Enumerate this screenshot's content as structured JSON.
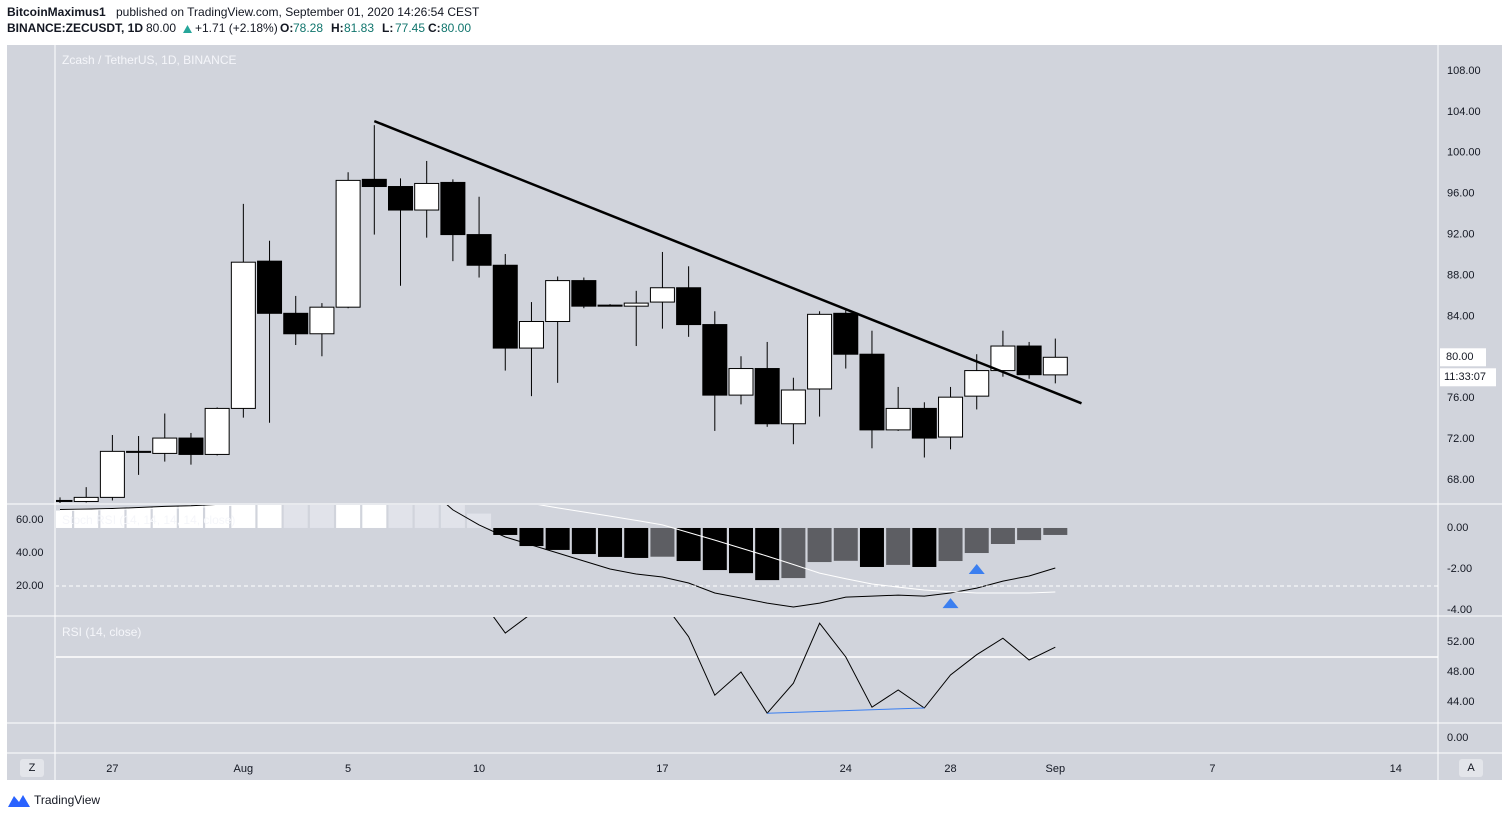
{
  "header": {
    "author": "BitcoinMaximus1",
    "published": "published on TradingView.com, September 01, 2020 14:26:54 CEST",
    "symbol": "BINANCE:ZECUSDT, 1D",
    "price": "80.00",
    "change": "+1.71 (+2.18%)",
    "ohlc": [
      {
        "label": "O:",
        "value": "78.28"
      },
      {
        "label": "H:",
        "value": "81.83"
      },
      {
        "label": "L:",
        "value": "77.45"
      },
      {
        "label": "C:",
        "value": "80.00"
      }
    ]
  },
  "chart_data": [
    {
      "type": "candlestick",
      "title": "Zcash / TetherUS, 1D, BINANCE",
      "x": [
        "2020-07-25",
        "2020-07-26",
        "2020-07-27",
        "2020-07-28",
        "2020-07-29",
        "2020-07-30",
        "2020-07-31",
        "2020-08-01",
        "2020-08-02",
        "2020-08-03",
        "2020-08-04",
        "2020-08-05",
        "2020-08-06",
        "2020-08-07",
        "2020-08-08",
        "2020-08-09",
        "2020-08-10",
        "2020-08-11",
        "2020-08-12",
        "2020-08-13",
        "2020-08-14",
        "2020-08-15",
        "2020-08-16",
        "2020-08-17",
        "2020-08-18",
        "2020-08-19",
        "2020-08-20",
        "2020-08-21",
        "2020-08-22",
        "2020-08-23",
        "2020-08-24",
        "2020-08-25",
        "2020-08-26",
        "2020-08-27",
        "2020-08-28",
        "2020-08-29",
        "2020-08-30",
        "2020-08-31",
        "2020-09-01"
      ],
      "open": [
        66.0,
        65.9,
        66.3,
        70.7,
        70.6,
        72.1,
        70.5,
        75.0,
        89.4,
        84.3,
        82.3,
        84.9,
        97.4,
        96.7,
        94.4,
        97.1,
        92.0,
        89.0,
        80.9,
        83.5,
        87.5,
        85.1,
        85.0,
        85.4,
        86.8,
        83.2,
        76.3,
        78.9,
        73.5,
        76.9,
        84.3,
        80.3,
        72.9,
        75.0,
        72.2,
        76.2,
        78.7,
        81.1,
        78.28
      ],
      "high": [
        66.3,
        67.3,
        72.4,
        72.3,
        74.5,
        72.6,
        75.1,
        95.0,
        91.4,
        86.0,
        85.3,
        98.1,
        102.7,
        97.5,
        99.2,
        97.4,
        95.7,
        90.1,
        85.4,
        87.9,
        87.8,
        85.2,
        86.5,
        90.3,
        88.9,
        84.5,
        80.1,
        81.5,
        78.0,
        84.5,
        84.6,
        82.6,
        77.1,
        75.6,
        77.1,
        80.3,
        82.6,
        81.5,
        81.83
      ],
      "low": [
        65.7,
        65.8,
        66.0,
        68.5,
        69.8,
        69.5,
        70.4,
        74.1,
        73.6,
        81.2,
        80.1,
        84.8,
        92.0,
        87.0,
        91.7,
        89.4,
        87.8,
        78.7,
        76.2,
        77.5,
        84.8,
        85.0,
        81.1,
        82.8,
        82.0,
        72.8,
        75.4,
        73.2,
        71.5,
        74.2,
        78.9,
        71.1,
        72.8,
        70.2,
        71.0,
        74.9,
        78.1,
        77.9,
        77.45
      ],
      "close": [
        65.9,
        66.3,
        70.8,
        70.8,
        72.1,
        70.5,
        75.0,
        89.3,
        84.3,
        82.3,
        84.9,
        97.3,
        96.7,
        94.4,
        97.0,
        92.0,
        89.0,
        80.9,
        83.5,
        87.5,
        85.0,
        85.0,
        85.3,
        86.8,
        83.2,
        76.3,
        78.9,
        73.5,
        76.8,
        84.2,
        80.3,
        72.9,
        75.0,
        72.1,
        76.1,
        78.7,
        81.1,
        78.3,
        80.0
      ],
      "up_color": "#ffffff",
      "down_color": "#000000",
      "wick_color": "#000000",
      "xlim": [
        "2020-07-25",
        "2020-09-15"
      ],
      "xticks": [
        {
          "value": "2020-07-27",
          "label": "27"
        },
        {
          "value": "2020-08-01",
          "label": "Aug"
        },
        {
          "value": "2020-08-05",
          "label": "5"
        },
        {
          "value": "2020-08-10",
          "label": "10"
        },
        {
          "value": "2020-08-17",
          "label": "17"
        },
        {
          "value": "2020-08-24",
          "label": "24"
        },
        {
          "value": "2020-08-28",
          "label": "28"
        },
        {
          "value": "2020-09-01",
          "label": "Sep"
        },
        {
          "value": "2020-09-07",
          "label": "7"
        },
        {
          "value": "2020-09-14",
          "label": "14"
        }
      ],
      "ylim": [
        65.75,
        110.54
      ],
      "yticks": [
        {
          "value": 68,
          "label": "68.00"
        },
        {
          "value": 72,
          "label": "72.00"
        },
        {
          "value": 76,
          "label": "76.00"
        },
        {
          "value": 80,
          "label": "80.00"
        },
        {
          "value": 84,
          "label": "84.00"
        },
        {
          "value": 88,
          "label": "88.00"
        },
        {
          "value": 92,
          "label": "92.00"
        },
        {
          "value": 96,
          "label": "96.00"
        },
        {
          "value": 100,
          "label": "100.00"
        },
        {
          "value": 104,
          "label": "104.00"
        },
        {
          "value": 108,
          "label": "108.00"
        }
      ],
      "trendline": {
        "x": [
          "2020-08-06",
          "2020-09-02"
        ],
        "values": [
          103.1,
          75.5
        ],
        "color": "#000000"
      },
      "price_label": {
        "value": 80,
        "label": "80.00"
      },
      "countdown": "11:33:07"
    },
    {
      "type": "bar",
      "title": "Stoch RSI (14, 14, 14, 14, close)",
      "x": [
        "2020-07-25",
        "2020-07-26",
        "2020-07-27",
        "2020-07-28",
        "2020-07-29",
        "2020-07-30",
        "2020-07-31",
        "2020-08-01",
        "2020-08-02",
        "2020-08-03",
        "2020-08-04",
        "2020-08-05",
        "2020-08-06",
        "2020-08-07",
        "2020-08-08",
        "2020-08-09",
        "2020-08-10",
        "2020-08-11",
        "2020-08-12",
        "2020-08-13",
        "2020-08-14",
        "2020-08-15",
        "2020-08-16",
        "2020-08-17",
        "2020-08-18",
        "2020-08-19",
        "2020-08-20",
        "2020-08-21",
        "2020-08-22",
        "2020-08-23",
        "2020-08-24",
        "2020-08-25",
        "2020-08-26",
        "2020-08-27",
        "2020-08-28",
        "2020-08-29",
        "2020-08-30",
        "2020-08-31",
        "2020-09-01"
      ],
      "values": [
        0.85,
        0.9,
        0.95,
        1.0,
        1.05,
        1.1,
        1.3,
        1.6,
        1.8,
        1.6,
        1.5,
        1.9,
        2.2,
        2.0,
        1.9,
        1.6,
        0.7,
        -0.34,
        -0.88,
        -1.07,
        -1.27,
        -1.41,
        -1.46,
        -1.4,
        -1.61,
        -2.05,
        -2.2,
        -2.54,
        -2.44,
        -1.66,
        -1.6,
        -1.9,
        -1.8,
        -1.9,
        -1.61,
        -1.22,
        -0.78,
        -0.59,
        -0.34
      ],
      "colors": [
        "#ffffff",
        "#ffffff",
        "#ffffff",
        "#ffffff",
        "#ffffff",
        "#ffffff",
        "#ffffff",
        "#ffffff",
        "#ffffff",
        "#e1e3ea",
        "#e1e3ea",
        "#ffffff",
        "#ffffff",
        "#e1e3ea",
        "#e1e3ea",
        "#e1e3ea",
        "#e1e3ea",
        "#000000",
        "#000000",
        "#000000",
        "#000000",
        "#000000",
        "#000000",
        "#5d5e63",
        "#000000",
        "#000000",
        "#000000",
        "#000000",
        "#5d5e63",
        "#5d5e63",
        "#5d5e63",
        "#000000",
        "#5d5e63",
        "#000000",
        "#5d5e63",
        "#5d5e63",
        "#5d5e63",
        "#5d5e63",
        "#5d5e63"
      ],
      "series": [
        {
          "color": "#000000",
          "values": [
            0.9,
            0.92,
            0.95,
            1.0,
            1.05,
            1.08,
            1.15,
            1.6,
            2.0,
            2.1,
            2.2,
            2.6,
            2.9,
            2.7,
            2.0,
            0.88,
            0.15,
            -0.44,
            -0.83,
            -1.22,
            -1.61,
            -2.0,
            -2.24,
            -2.39,
            -2.68,
            -3.17,
            -3.41,
            -3.66,
            -3.85,
            -3.66,
            -3.37,
            -3.32,
            -3.27,
            -3.32,
            -3.17,
            -2.93,
            -2.59,
            -2.34,
            -1.95
          ]
        },
        {
          "color": "#ffffff",
          "values": [
            0.85,
            0.87,
            0.9,
            0.93,
            0.96,
            1.0,
            1.05,
            1.15,
            1.3,
            1.45,
            1.55,
            1.7,
            1.85,
            1.95,
            1.9,
            1.8,
            1.6,
            1.4,
            1.2,
            0.98,
            0.78,
            0.58,
            0.37,
            0.15,
            -0.22,
            -0.59,
            -0.98,
            -1.37,
            -1.78,
            -2.2,
            -2.47,
            -2.73,
            -2.88,
            -3.02,
            -3.1,
            -3.17,
            -3.17,
            -3.17,
            -3.12
          ]
        }
      ],
      "ylim": [
        -4.24,
        1.12
      ],
      "yticks": [
        {
          "value": 0,
          "label": "0.00"
        },
        {
          "value": -2,
          "label": "-2.00"
        },
        {
          "value": -4,
          "label": "-4.00"
        }
      ],
      "y2lim": [
        2.4,
        69.1
      ],
      "y2ticks": [
        {
          "value": 60,
          "label": "60.00"
        },
        {
          "value": 40,
          "label": "40.00"
        },
        {
          "value": 20,
          "label": "20.00"
        }
      ],
      "hlines": [
        {
          "value": 20,
          "axis": "y2",
          "color": "#ffffff",
          "style": "dashed"
        }
      ],
      "markers": [
        {
          "x": "2020-08-28",
          "value": -3.66,
          "color": "#3b7ff0"
        },
        {
          "x": "2020-08-29",
          "value": -2.0,
          "color": "#3b7ff0"
        }
      ]
    },
    {
      "type": "line",
      "title": "RSI (14, close)",
      "x": [
        "2020-07-25",
        "2020-07-26",
        "2020-07-27",
        "2020-07-28",
        "2020-07-29",
        "2020-07-30",
        "2020-07-31",
        "2020-08-01",
        "2020-08-02",
        "2020-08-03",
        "2020-08-04",
        "2020-08-05",
        "2020-08-06",
        "2020-08-07",
        "2020-08-08",
        "2020-08-09",
        "2020-08-10",
        "2020-08-11",
        "2020-08-12",
        "2020-08-13",
        "2020-08-14",
        "2020-08-15",
        "2020-08-16",
        "2020-08-17",
        "2020-08-18",
        "2020-08-19",
        "2020-08-20",
        "2020-08-21",
        "2020-08-22",
        "2020-08-23",
        "2020-08-24",
        "2020-08-25",
        "2020-08-26",
        "2020-08-27",
        "2020-08-28",
        "2020-08-29",
        "2020-08-30",
        "2020-08-31",
        "2020-09-01"
      ],
      "values": [
        null,
        null,
        null,
        null,
        null,
        null,
        null,
        null,
        null,
        null,
        null,
        null,
        null,
        null,
        null,
        null,
        58,
        53.2,
        55.8,
        57,
        57.5,
        57.2,
        57.3,
        57.4,
        52.7,
        44.9,
        48.0,
        42.5,
        46.5,
        54.5,
        50.0,
        43.3,
        45.6,
        43.2,
        47.6,
        50.3,
        52.5,
        49.6,
        51.3
      ],
      "color": "#000000",
      "ylim": [
        41.33,
        55.33
      ],
      "yticks": [
        {
          "value": 52,
          "label": "52.00"
        },
        {
          "value": 48,
          "label": "48.00"
        },
        {
          "value": 44,
          "label": "44.00"
        }
      ],
      "hlines": [
        {
          "value": 50,
          "color": "#ffffff",
          "style": "solid"
        }
      ],
      "lines": [
        {
          "x": [
            "2020-08-21",
            "2020-08-27"
          ],
          "values": [
            42.5,
            43.2
          ],
          "color": "#3b7ff0"
        }
      ]
    },
    {
      "type": "line",
      "ylim": [
        -1,
        1
      ],
      "yticks": [
        {
          "value": 0,
          "label": "0.00"
        }
      ]
    }
  ],
  "footer": {
    "brand": "TradingView",
    "left_button": "Z",
    "right_button": "A"
  }
}
